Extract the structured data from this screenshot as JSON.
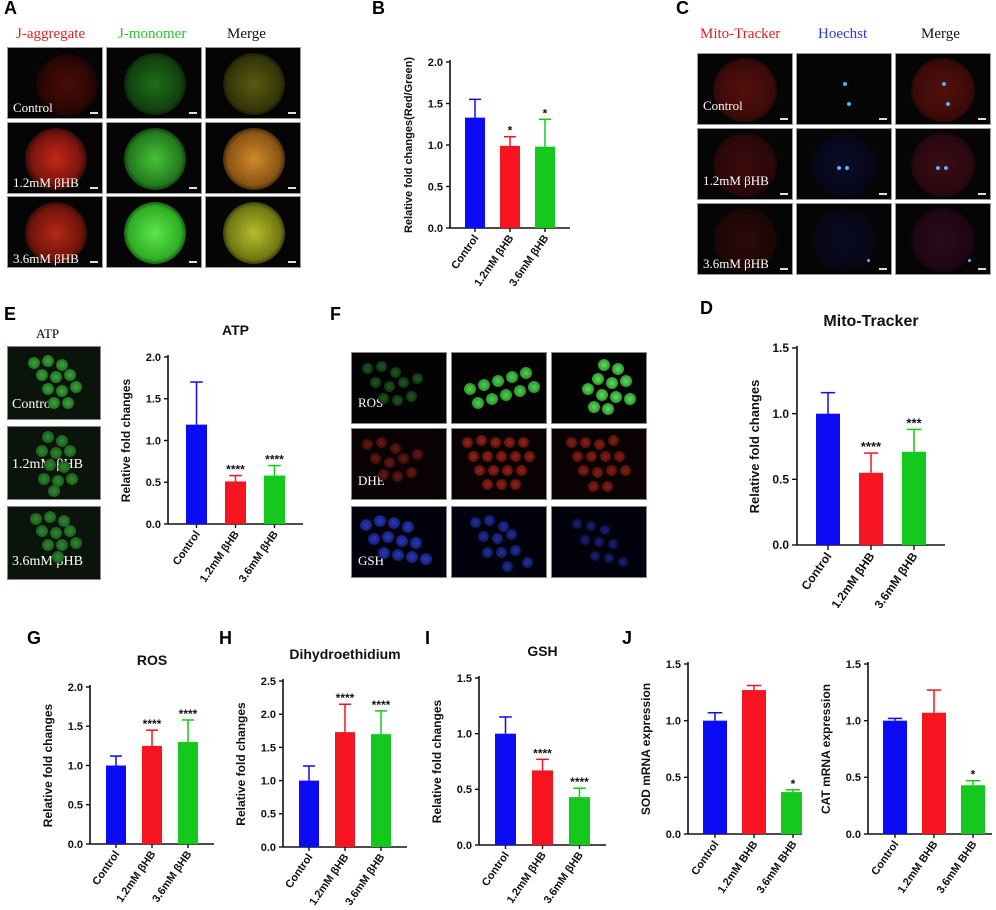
{
  "panels": {
    "A": {
      "label": "A",
      "headers": [
        "J-aggregate",
        "J-monomer",
        "Merge"
      ],
      "header_colors": [
        "#e0221c",
        "#2fbf2f",
        "#111111"
      ],
      "rows": [
        "Control",
        "1.2mM βHB",
        "3.6mM βHB"
      ]
    },
    "B": {
      "label": "B"
    },
    "C": {
      "label": "C",
      "headers": [
        "Mito-Tracker",
        "Hoechst",
        "Merge"
      ],
      "header_colors": [
        "#e0221c",
        "#2a3ad6",
        "#111111"
      ],
      "rows": [
        "Control",
        "1.2mM βHB",
        "3.6mM βHB"
      ]
    },
    "D": {
      "label": "D"
    },
    "E": {
      "label": "E",
      "header": "ATP",
      "rows": [
        "Control",
        "1.2mM βHB",
        "3.6mM βHB"
      ]
    },
    "F": {
      "label": "F",
      "rows": [
        "ROS",
        "DHE",
        "GSH"
      ]
    },
    "G": {
      "label": "G"
    },
    "H": {
      "label": "H"
    },
    "I": {
      "label": "I"
    },
    "J": {
      "label": "J"
    }
  },
  "colors": {
    "control": "#0b0bf5",
    "low": "#f5141f",
    "high": "#14c81e"
  },
  "chart_data": [
    {
      "id": "B",
      "type": "bar",
      "title": "",
      "ylabel": "Relative fold changes(Red/Green)",
      "categories": [
        "Control",
        "1.2mM βHB",
        "3.6mM βHB"
      ],
      "values": [
        1.33,
        0.99,
        0.98
      ],
      "errors": [
        0.22,
        0.11,
        0.33
      ],
      "sig": [
        "",
        "*",
        "*"
      ],
      "ylim": [
        0,
        2.0
      ],
      "yticks": [
        "0.0",
        "0.5",
        "1.0",
        "1.5",
        "2.0"
      ]
    },
    {
      "id": "D",
      "type": "bar",
      "title": "Mito-Tracker",
      "ylabel": "Relative fold changes",
      "categories": [
        "Control",
        "1.2mM βHB",
        "3.6mM βHB"
      ],
      "values": [
        1.0,
        0.55,
        0.71
      ],
      "errors": [
        0.16,
        0.15,
        0.17
      ],
      "sig": [
        "",
        "****",
        "***"
      ],
      "ylim": [
        0,
        1.5
      ],
      "yticks": [
        "0.0",
        "0.5",
        "1.0",
        "1.5"
      ]
    },
    {
      "id": "E",
      "type": "bar",
      "title": "ATP",
      "ylabel": "Relative fold changes",
      "categories": [
        "Control",
        "1.2mM βHB",
        "3.6mM βHB"
      ],
      "values": [
        1.19,
        0.51,
        0.58
      ],
      "errors": [
        0.51,
        0.07,
        0.12
      ],
      "sig": [
        "",
        "****",
        "****"
      ],
      "ylim": [
        0,
        2.0
      ],
      "yticks": [
        "0.0",
        "0.5",
        "1.0",
        "1.5",
        "2.0"
      ]
    },
    {
      "id": "G",
      "type": "bar",
      "title": "ROS",
      "ylabel": "Relative fold changes",
      "categories": [
        "Control",
        "1.2mM βHB",
        "3.6mM βHB"
      ],
      "values": [
        1.0,
        1.25,
        1.3
      ],
      "errors": [
        0.12,
        0.2,
        0.28
      ],
      "sig": [
        "",
        "****",
        "****"
      ],
      "ylim": [
        0,
        2.0
      ],
      "yticks": [
        "0.0",
        "0.5",
        "1.0",
        "1.5",
        "2.0"
      ]
    },
    {
      "id": "H",
      "type": "bar",
      "title": "Dihydroethidium",
      "ylabel": "Relative fold changes",
      "categories": [
        "Control",
        "1.2mM βHB",
        "3.6mM βHB"
      ],
      "values": [
        1.0,
        1.73,
        1.7
      ],
      "errors": [
        0.22,
        0.42,
        0.35
      ],
      "sig": [
        "",
        "****",
        "****"
      ],
      "ylim": [
        0,
        2.5
      ],
      "yticks": [
        "0.0",
        "0.5",
        "1.0",
        "1.5",
        "2.0",
        "2.5"
      ]
    },
    {
      "id": "I",
      "type": "bar",
      "title": "GSH",
      "ylabel": "Relative fold changes",
      "categories": [
        "Control",
        "1.2mM βHB",
        "3.6mM βHB"
      ],
      "values": [
        1.0,
        0.67,
        0.43
      ],
      "errors": [
        0.15,
        0.1,
        0.08
      ],
      "sig": [
        "",
        "****",
        "****"
      ],
      "ylim": [
        0,
        1.5
      ],
      "yticks": [
        "0.0",
        "0.5",
        "1.0",
        "1.5"
      ]
    },
    {
      "id": "J1",
      "type": "bar",
      "title": "",
      "ylabel": "SOD mRNA expression",
      "categories": [
        "Control",
        "1.2mM BHB",
        "3.6mM BHB"
      ],
      "values": [
        1.0,
        1.27,
        0.37
      ],
      "errors": [
        0.07,
        0.04,
        0.02
      ],
      "sig": [
        "",
        "",
        "*"
      ],
      "ylim": [
        0,
        1.5
      ],
      "yticks": [
        "0.0",
        "0.5",
        "1.0",
        "1.5"
      ]
    },
    {
      "id": "J2",
      "type": "bar",
      "title": "",
      "ylabel": "CAT mRNA expression",
      "categories": [
        "Control",
        "1.2mM BHB",
        "3.6mM BHB"
      ],
      "values": [
        1.0,
        1.07,
        0.43
      ],
      "errors": [
        0.02,
        0.2,
        0.04
      ],
      "sig": [
        "",
        "",
        "*"
      ],
      "ylim": [
        0,
        1.5
      ],
      "yticks": [
        "0.0",
        "0.5",
        "1.0",
        "1.5"
      ]
    }
  ]
}
